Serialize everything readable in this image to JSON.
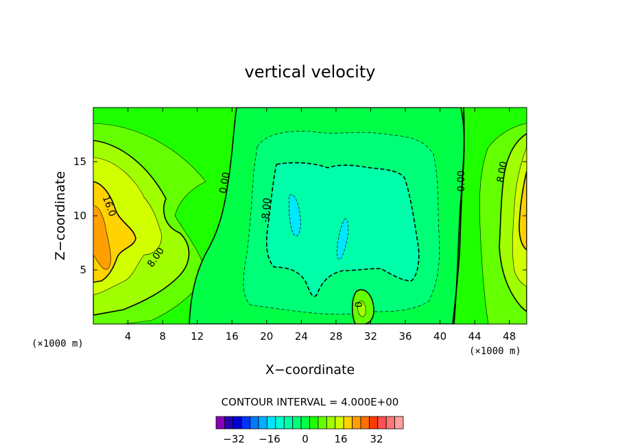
{
  "chart_data": {
    "type": "heatmap",
    "title": "vertical velocity",
    "xlabel": "X−coordinate",
    "ylabel": "Z−coordinate",
    "x_unit_label": "(×1000 m)",
    "y_unit_label": "(×1000 m)",
    "xlim": [
      0,
      50
    ],
    "ylim": [
      0,
      20
    ],
    "x_ticks": [
      4,
      8,
      12,
      16,
      20,
      24,
      28,
      32,
      36,
      40,
      44,
      48
    ],
    "x_tick_labels": [
      "4",
      "8",
      "12",
      "16",
      "20",
      "24",
      "28",
      "32",
      "36",
      "40",
      "44",
      "48"
    ],
    "y_ticks": [
      5,
      10,
      15
    ],
    "y_tick_labels": [
      "5",
      "10",
      "15"
    ],
    "contour_interval_text": "CONTOUR INTERVAL = 4.000E+00",
    "contour_interval": 4.0,
    "contour_labels": [
      {
        "text": "16.0",
        "x": 1.5,
        "y": 10.8
      },
      {
        "text": "8.00",
        "x": 7.5,
        "y": 6.0
      },
      {
        "text": "0.00",
        "x": 15.5,
        "y": 13.0
      },
      {
        "text": "-8.00",
        "x": 20.3,
        "y": 10.5
      },
      {
        "text": "0.00",
        "x": 42.8,
        "y": 13.2
      },
      {
        "text": "8.00",
        "x": 47.5,
        "y": 14.0
      },
      {
        "text": "0",
        "x": 30.2,
        "y": 1.8
      }
    ],
    "colorbar": {
      "colors": [
        "#8a00b4",
        "#2800b4",
        "#0000d2",
        "#0032ff",
        "#0078ff",
        "#00afff",
        "#00e6ff",
        "#00ffd2",
        "#00ffaa",
        "#00ff78",
        "#00ff46",
        "#1eff00",
        "#64ff00",
        "#a0ff00",
        "#d2ff00",
        "#ffd200",
        "#ffa000",
        "#ff6e00",
        "#ff3c00",
        "#ff5050",
        "#ff7878",
        "#ffa0a0"
      ],
      "levels": [
        -40,
        -36,
        -32,
        -28,
        -24,
        -20,
        -16,
        -12,
        -8,
        -4,
        0,
        4,
        8,
        12,
        16,
        20,
        24,
        28,
        32,
        36,
        40,
        44
      ],
      "tick_values": [
        -32,
        -16,
        0,
        16,
        32
      ],
      "tick_labels": [
        "−32",
        "−16",
        "0",
        "16",
        "32"
      ]
    },
    "grid": false
  }
}
